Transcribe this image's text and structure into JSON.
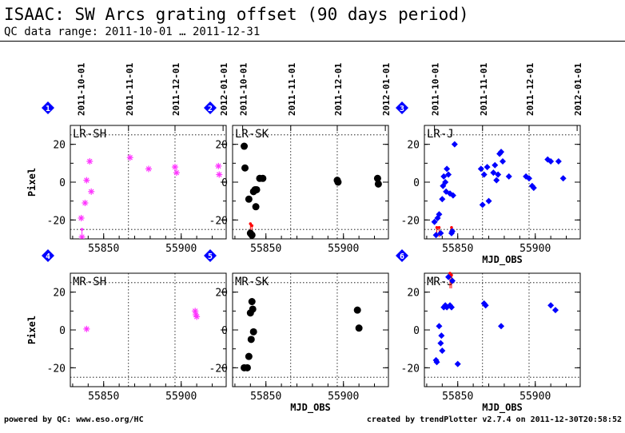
{
  "header": {
    "title": "ISAAC: SW Arcs grating offset (90 days period)",
    "range": "QC data range: 2011-10-01 … 2011-12-31"
  },
  "footer": {
    "left": "powered by QC: www.eso.org/HC",
    "right": "created by trendPlotter v2.7.4 on 2011-12-30T20:58:52"
  },
  "chart_data": [
    {
      "type": "scatter",
      "panel": "1",
      "label": "LR-SH",
      "marker": "star",
      "color": "#ff33ff",
      "xlabel": "",
      "ylabel": "Pixel",
      "xlim": [
        55828.5,
        55929
      ],
      "ylim": [
        -30,
        30
      ],
      "xticks": [
        55850,
        55900
      ],
      "yticks": [
        20,
        0,
        -20
      ],
      "date_ticks": [
        {
          "x": 55835,
          "label": "2011-10-01"
        },
        {
          "x": 55866,
          "label": "2011-11-01"
        },
        {
          "x": 55896,
          "label": "2011-12-01"
        },
        {
          "x": 55927,
          "label": "2012-01-01"
        }
      ],
      "dotted_vlines": [
        55866,
        55896
      ],
      "dotted_hlines": [
        25,
        -25
      ],
      "error_bars": [
        [
          55836,
          -29,
          -25
        ]
      ],
      "points": [
        [
          55835.5,
          -19
        ],
        [
          55836,
          -29
        ],
        [
          55838,
          -11
        ],
        [
          55839,
          1
        ],
        [
          55841,
          11
        ],
        [
          55842,
          -5
        ],
        [
          55867,
          13
        ],
        [
          55879,
          7
        ],
        [
          55896,
          8
        ],
        [
          55897,
          5
        ],
        [
          55924,
          8.5
        ],
        [
          55924.5,
          4
        ]
      ]
    },
    {
      "type": "scatter",
      "panel": "2",
      "label": "LR-SK",
      "marker": "circle",
      "color": "#000000",
      "xlabel": "",
      "ylabel": "",
      "xlim": [
        55828.5,
        55929
      ],
      "ylim": [
        -30,
        30
      ],
      "xticks": [
        55850,
        55900
      ],
      "yticks": [
        20,
        0,
        -20
      ],
      "date_ticks": [
        {
          "x": 55835,
          "label": "2011-10-01"
        },
        {
          "x": 55866,
          "label": "2011-11-01"
        },
        {
          "x": 55896,
          "label": "2011-12-01"
        },
        {
          "x": 55927,
          "label": "2012-01-01"
        }
      ],
      "dotted_vlines": [
        55866,
        55896
      ],
      "dotted_hlines": [
        25,
        -25
      ],
      "error_bars": [
        [
          55840,
          -29,
          -22
        ],
        [
          55841,
          -29,
          -23
        ]
      ],
      "error_color": "#ff0000",
      "points": [
        [
          55836,
          19
        ],
        [
          55836.5,
          7.5
        ],
        [
          55839,
          -9
        ],
        [
          55840,
          -27
        ],
        [
          55841,
          -28
        ],
        [
          55842,
          -5
        ],
        [
          55843,
          -4
        ],
        [
          55843.5,
          -13
        ],
        [
          55844,
          -4
        ],
        [
          55846,
          2
        ],
        [
          55848,
          2
        ],
        [
          55896,
          1
        ],
        [
          55896.5,
          0
        ],
        [
          55922,
          2
        ],
        [
          55922.5,
          -1
        ]
      ]
    },
    {
      "type": "scatter",
      "panel": "3",
      "label": "LR-J",
      "marker": "diamond",
      "color": "#0000ff",
      "xlabel": "MJD_OBS",
      "ylabel": "",
      "xlim": [
        55828.5,
        55929
      ],
      "ylim": [
        -30,
        30
      ],
      "xticks": [
        55850,
        55900
      ],
      "yticks": [
        20,
        0,
        -20
      ],
      "date_ticks": [
        {
          "x": 55835,
          "label": "2011-10-01"
        },
        {
          "x": 55866,
          "label": "2011-11-01"
        },
        {
          "x": 55896,
          "label": "2011-12-01"
        },
        {
          "x": 55927,
          "label": "2012-01-01"
        }
      ],
      "dotted_vlines": [
        55866,
        55896
      ],
      "dotted_hlines": [
        25,
        -25
      ],
      "error_bars": [
        [
          55836.5,
          -29,
          -24
        ],
        [
          55838,
          -29,
          -24
        ],
        [
          55846,
          -28,
          -24
        ]
      ],
      "error_color": "#ff0000",
      "points": [
        [
          55835,
          -21
        ],
        [
          55836,
          -28
        ],
        [
          55837,
          -19
        ],
        [
          55838,
          -17
        ],
        [
          55839,
          -27
        ],
        [
          55840,
          -9
        ],
        [
          55840.5,
          -2
        ],
        [
          55841,
          3
        ],
        [
          55842,
          0
        ],
        [
          55842.5,
          -5
        ],
        [
          55843,
          7
        ],
        [
          55844,
          4
        ],
        [
          55845,
          -6
        ],
        [
          55846,
          -27
        ],
        [
          55846.5,
          -26
        ],
        [
          55847,
          -7
        ],
        [
          55848,
          20
        ],
        [
          55865,
          7
        ],
        [
          55866,
          -12
        ],
        [
          55867,
          4
        ],
        [
          55869,
          8
        ],
        [
          55870,
          -10
        ],
        [
          55873,
          5
        ],
        [
          55874,
          9
        ],
        [
          55875,
          1
        ],
        [
          55876,
          4
        ],
        [
          55877,
          15
        ],
        [
          55878,
          16
        ],
        [
          55879,
          11
        ],
        [
          55883,
          3
        ],
        [
          55894,
          3
        ],
        [
          55896,
          2
        ],
        [
          55898,
          -2
        ],
        [
          55899,
          -3
        ],
        [
          55908,
          12
        ],
        [
          55910,
          11
        ],
        [
          55915,
          11
        ],
        [
          55918,
          2
        ]
      ]
    },
    {
      "type": "scatter",
      "panel": "4",
      "label": "MR-SH",
      "marker": "star",
      "color": "#ff33ff",
      "xlabel": "",
      "ylabel": "Pixel",
      "xlim": [
        55828.5,
        55929
      ],
      "ylim": [
        -30,
        30
      ],
      "xticks": [
        55850,
        55900
      ],
      "yticks": [
        20,
        0,
        -20
      ],
      "dotted_vlines": [
        55866,
        55896
      ],
      "dotted_hlines": [
        25,
        -25
      ],
      "error_bars": [],
      "points": [
        [
          55839,
          0.5
        ],
        [
          55909,
          10
        ],
        [
          55909.5,
          8
        ],
        [
          55910,
          7
        ]
      ]
    },
    {
      "type": "scatter",
      "panel": "5",
      "label": "MR-SK",
      "marker": "circle",
      "color": "#000000",
      "xlabel": "MJD_OBS",
      "ylabel": "",
      "xlim": [
        55828.5,
        55929
      ],
      "ylim": [
        -30,
        30
      ],
      "xticks": [
        55850,
        55900
      ],
      "yticks": [
        20,
        0,
        -20
      ],
      "dotted_vlines": [
        55866,
        55896
      ],
      "dotted_hlines": [
        25,
        -25
      ],
      "error_bars": [],
      "points": [
        [
          55836,
          -20
        ],
        [
          55838,
          -20
        ],
        [
          55839,
          -14
        ],
        [
          55840,
          9
        ],
        [
          55840.5,
          -5
        ],
        [
          55841,
          15
        ],
        [
          55841.5,
          11
        ],
        [
          55842,
          -1
        ],
        [
          55909,
          10.5
        ],
        [
          55910,
          1
        ]
      ]
    },
    {
      "type": "scatter",
      "panel": "6",
      "label": "MR-J",
      "marker": "diamond",
      "color": "#0000ff",
      "xlabel": "MJD_OBS",
      "ylabel": "",
      "xlim": [
        55828.5,
        55929
      ],
      "ylim": [
        -30,
        30
      ],
      "xticks": [
        55850,
        55900
      ],
      "yticks": [
        20,
        0,
        -20
      ],
      "dotted_vlines": [
        55866,
        55896
      ],
      "dotted_hlines": [
        25,
        -25
      ],
      "error_bars": [
        [
          55845,
          22,
          30
        ],
        [
          55846,
          22,
          29
        ]
      ],
      "error_color": "#ff0000",
      "points": [
        [
          55836,
          -16
        ],
        [
          55836.5,
          -17
        ],
        [
          55838,
          2
        ],
        [
          55839,
          -7
        ],
        [
          55839.5,
          -3
        ],
        [
          55840,
          -11
        ],
        [
          55841,
          12
        ],
        [
          55842,
          13
        ],
        [
          55843,
          12
        ],
        [
          55844,
          28
        ],
        [
          55845,
          13
        ],
        [
          55846,
          12
        ],
        [
          55846.5,
          26
        ],
        [
          55850,
          -18
        ],
        [
          55867,
          14
        ],
        [
          55868,
          13
        ],
        [
          55878,
          2
        ],
        [
          55910,
          13
        ],
        [
          55913,
          10.5
        ]
      ]
    }
  ]
}
